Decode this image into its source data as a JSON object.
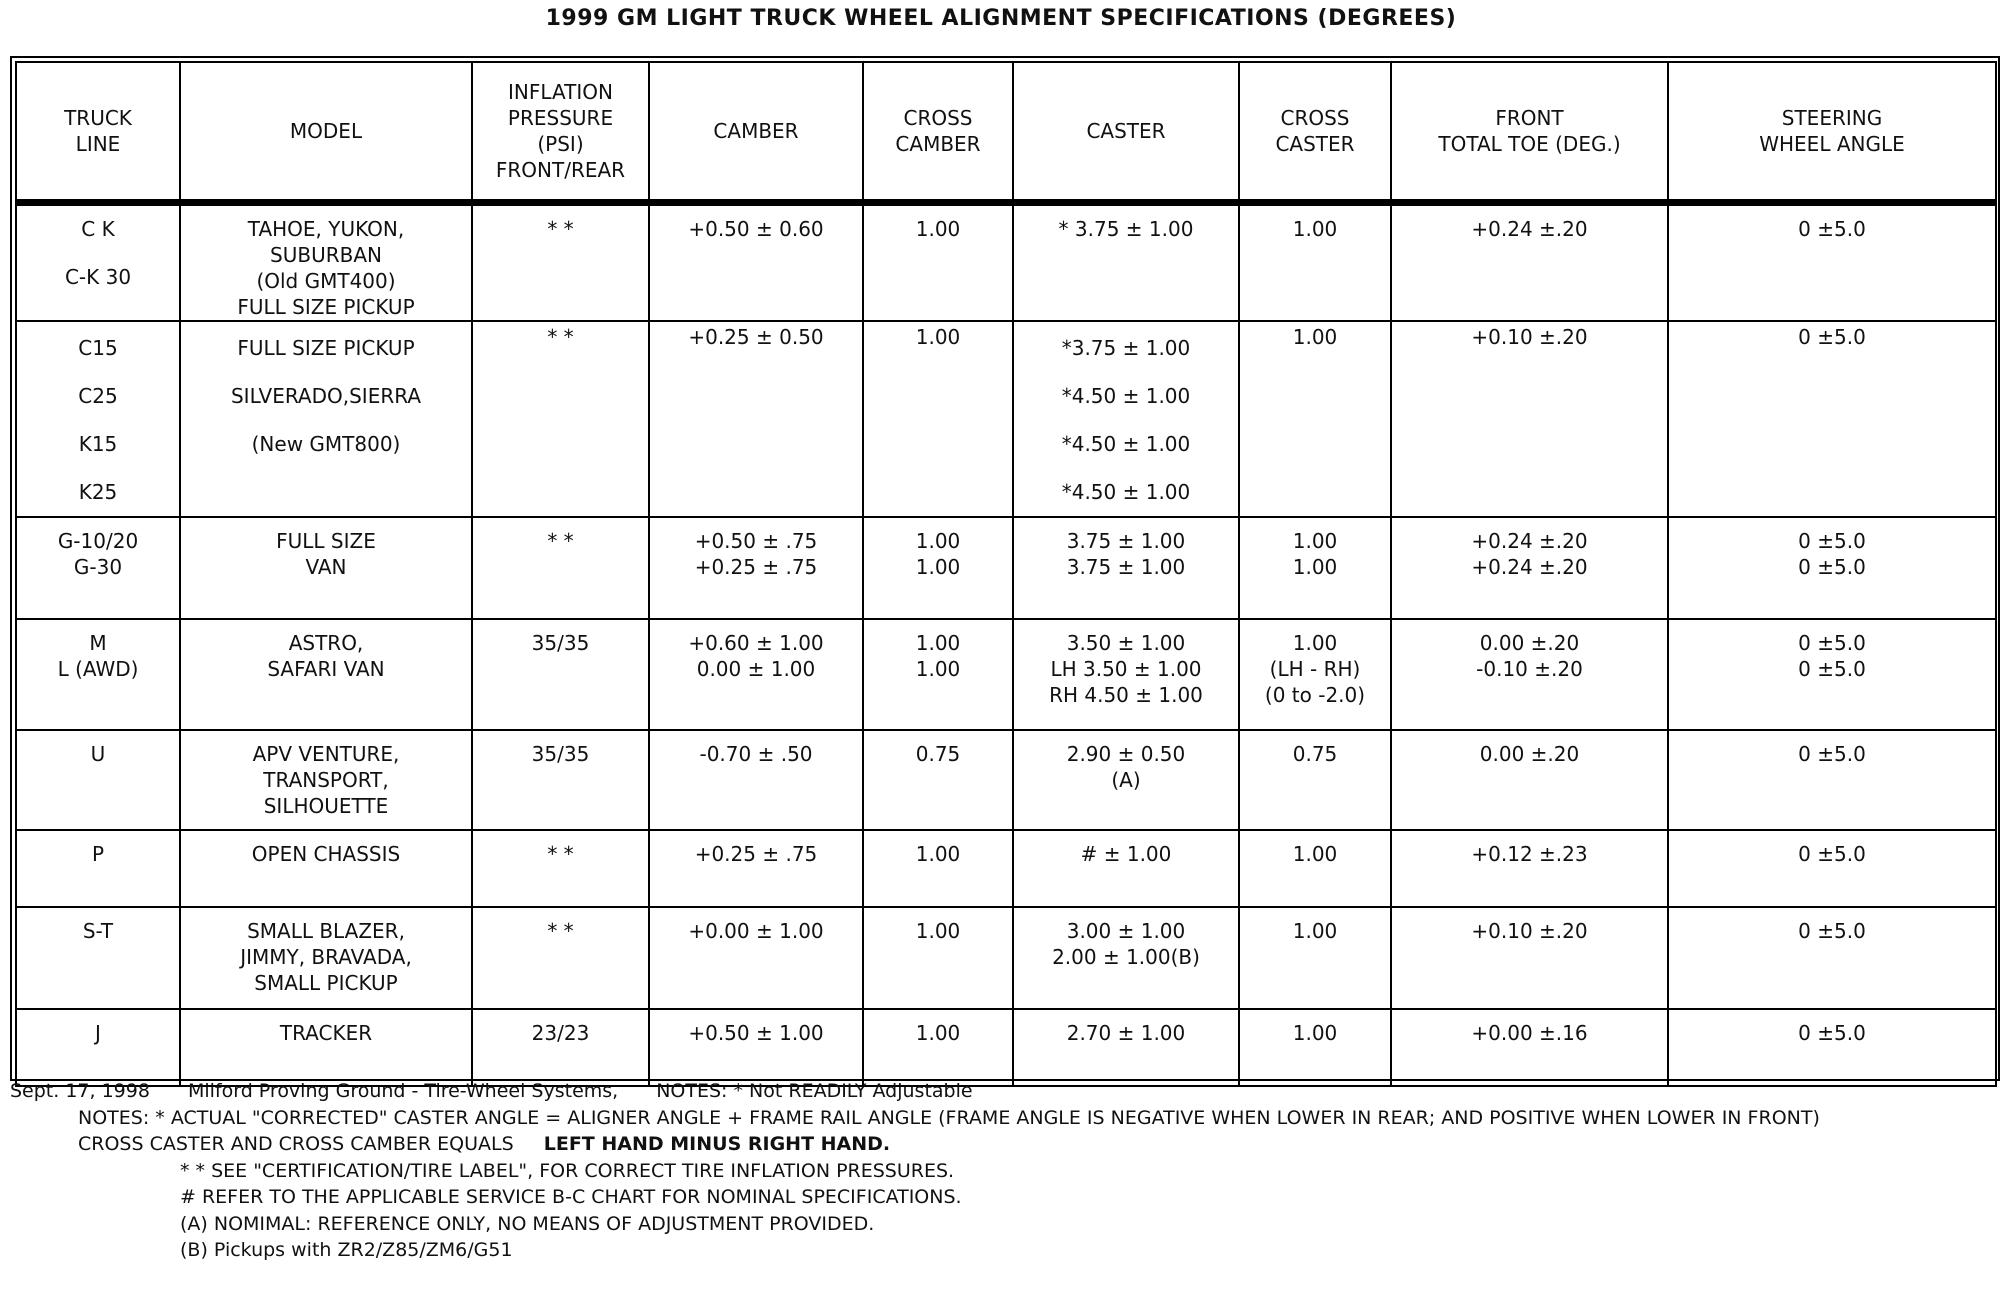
{
  "title": "1999 GM LIGHT TRUCK WHEEL ALIGNMENT SPECIFICATIONS (DEGREES)",
  "table": {
    "headers": [
      [
        "TRUCK",
        "LINE"
      ],
      [
        "MODEL"
      ],
      [
        "INFLATION",
        "PRESSURE",
        "(PSI)",
        "FRONT/REAR"
      ],
      [
        "CAMBER"
      ],
      [
        "CROSS",
        "CAMBER"
      ],
      [
        "CASTER"
      ],
      [
        "CROSS",
        "CASTER"
      ],
      [
        "FRONT",
        "TOTAL TOE (DEG.)"
      ],
      [
        "STEERING",
        "WHEEL ANGLE"
      ]
    ],
    "rows": [
      [
        [
          "C K",
          "C-K 30"
        ],
        [
          "TAHOE, YUKON,",
          "SUBURBAN",
          "(Old GMT400)",
          "FULL SIZE PICKUP"
        ],
        [
          "* *"
        ],
        [
          "+0.50 ± 0.60"
        ],
        [
          "1.00"
        ],
        [
          "* 3.75 ± 1.00"
        ],
        [
          "1.00"
        ],
        [
          "+0.24 ±.20"
        ],
        [
          "0 ±5.0"
        ]
      ],
      [
        [
          "C15",
          "C25",
          "K15",
          "K25"
        ],
        [
          "FULL SIZE PICKUP",
          "SILVERADO,SIERRA",
          "(New GMT800)"
        ],
        [
          "* *"
        ],
        [
          "+0.25 ± 0.50"
        ],
        [
          "1.00"
        ],
        [
          "*3.75 ± 1.00",
          "*4.50 ± 1.00",
          "*4.50 ± 1.00",
          "*4.50 ± 1.00"
        ],
        [
          "1.00"
        ],
        [
          "+0.10 ±.20"
        ],
        [
          "0 ±5.0"
        ]
      ],
      [
        [
          "G-10/20",
          "G-30"
        ],
        [
          "FULL SIZE",
          "VAN"
        ],
        [
          "* *"
        ],
        [
          "+0.50 ± .75",
          "+0.25 ± .75"
        ],
        [
          "1.00",
          "1.00"
        ],
        [
          "3.75 ± 1.00",
          "3.75 ± 1.00"
        ],
        [
          "1.00",
          "1.00"
        ],
        [
          "+0.24 ±.20",
          "+0.24 ±.20"
        ],
        [
          "0 ±5.0",
          "0 ±5.0"
        ]
      ],
      [
        [
          "M",
          "L (AWD)"
        ],
        [
          "ASTRO,",
          "SAFARI VAN"
        ],
        [
          "35/35"
        ],
        [
          "+0.60 ± 1.00",
          "0.00 ± 1.00"
        ],
        [
          "1.00",
          "1.00"
        ],
        [
          "3.50 ± 1.00",
          "LH 3.50 ± 1.00",
          "RH 4.50 ± 1.00"
        ],
        [
          "1.00",
          "(LH - RH)",
          "(0 to -2.0)"
        ],
        [
          "0.00 ±.20",
          "-0.10 ±.20"
        ],
        [
          "0 ±5.0",
          "0 ±5.0"
        ]
      ],
      [
        [
          "U"
        ],
        [
          "APV VENTURE,",
          "TRANSPORT,",
          "SILHOUETTE"
        ],
        [
          "35/35"
        ],
        [
          "-0.70 ± .50"
        ],
        [
          "0.75"
        ],
        [
          "2.90 ± 0.50",
          "(A)"
        ],
        [
          "0.75"
        ],
        [
          "0.00 ±.20"
        ],
        [
          "0 ±5.0"
        ]
      ],
      [
        [
          "P"
        ],
        [
          "OPEN CHASSIS"
        ],
        [
          "* *"
        ],
        [
          "+0.25 ± .75"
        ],
        [
          "1.00"
        ],
        [
          "# ± 1.00"
        ],
        [
          "1.00"
        ],
        [
          "+0.12 ±.23"
        ],
        [
          "0 ±5.0"
        ]
      ],
      [
        [
          "S-T"
        ],
        [
          "SMALL BLAZER,",
          "JIMMY, BRAVADA,",
          "SMALL PICKUP"
        ],
        [
          "* *"
        ],
        [
          "+0.00 ± 1.00"
        ],
        [
          "1.00"
        ],
        [
          "3.00 ± 1.00",
          "2.00 ± 1.00(B)"
        ],
        [
          "1.00"
        ],
        [
          "+0.10 ±.20"
        ],
        [
          "0 ±5.0"
        ]
      ],
      [
        [
          "J"
        ],
        [
          "TRACKER"
        ],
        [
          "23/23"
        ],
        [
          "+0.50 ± 1.00"
        ],
        [
          "1.00"
        ],
        [
          "2.70 ± 1.00"
        ],
        [
          "1.00"
        ],
        [
          "+0.00 ±.16"
        ],
        [
          "0 ±5.0"
        ]
      ]
    ]
  },
  "footer": {
    "date": "Sept. 17, 1998",
    "source": "Milford Proving Ground - Tire-Wheel Systems,",
    "short_note": "NOTES:  * Not READILY Adjustable",
    "caster_note": "NOTES:  * ACTUAL \"CORRECTED\" CASTER ANGLE = ALIGNER ANGLE + FRAME RAIL ANGLE (FRAME ANGLE IS NEGATIVE WHEN LOWER IN REAR; AND POSITIVE WHEN LOWER IN FRONT)",
    "cross_note": "CROSS CASTER AND CROSS CAMBER EQUALS",
    "cross_note_bold": "LEFT HAND MINUS RIGHT HAND.",
    "notes": [
      "* *  SEE \"CERTIFICATION/TIRE LABEL\", FOR CORRECT TIRE INFLATION PRESSURES.",
      "# REFER TO THE APPLICABLE SERVICE B-C CHART FOR NOMINAL SPECIFICATIONS.",
      "(A) NOMIMAL: REFERENCE ONLY, NO MEANS OF ADJUSTMENT PROVIDED.",
      "(B) Pickups with ZR2/Z85/ZM6/G51"
    ]
  }
}
